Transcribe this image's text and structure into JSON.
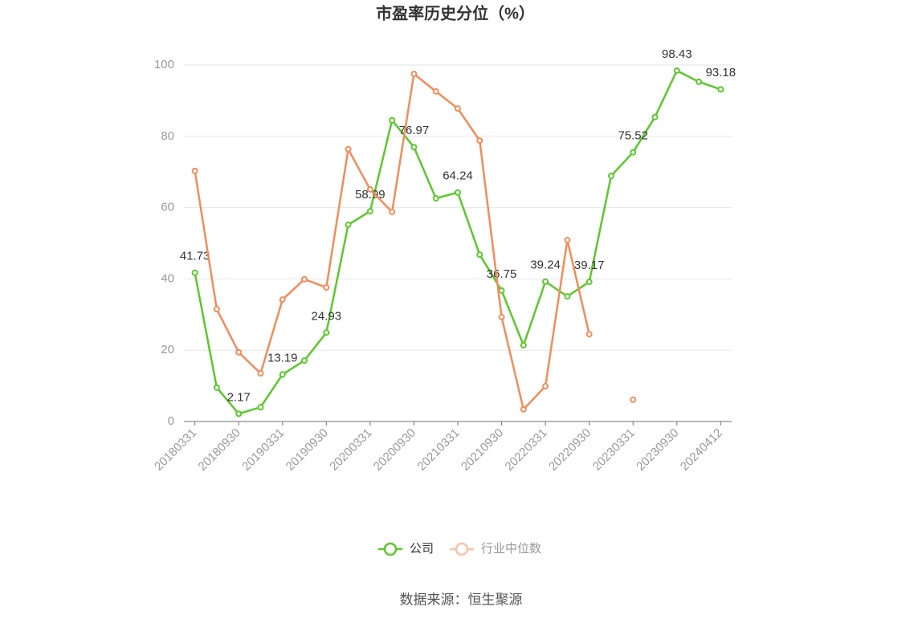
{
  "chart_data": {
    "type": "line",
    "title": "市盈率历史分位（%）",
    "categories": [
      "20180331",
      null,
      "20180930",
      null,
      "20190331",
      null,
      "20190930",
      null,
      "20200331",
      null,
      "20200930",
      null,
      "20210331",
      null,
      "20210930",
      null,
      "20220331",
      null,
      "20220930",
      null,
      "20230331",
      null,
      "20230930",
      null,
      "20240412"
    ],
    "series": [
      {
        "name": "公司",
        "color": "#5cc72c",
        "values": [
          41.73,
          9.5,
          2.17,
          4,
          13.19,
          17.1,
          24.93,
          55.2,
          58.99,
          84.5,
          76.97,
          62.6,
          64.24,
          46.8,
          36.75,
          21.4,
          39.24,
          35.1,
          39.17,
          68.9,
          75.52,
          85.4,
          98.43,
          95.3,
          93.18
        ],
        "value_labels": [
          "41.73",
          null,
          "2.17",
          null,
          "13.19",
          null,
          "24.93",
          null,
          "58.99",
          null,
          "76.97",
          null,
          "64.24",
          null,
          "36.75",
          null,
          "39.24",
          null,
          "39.17",
          null,
          "75.52",
          null,
          "98.43",
          null,
          "93.18"
        ]
      },
      {
        "name": "行业中位数",
        "color": "#f28c5b",
        "values": [
          70.3,
          31.5,
          19.4,
          13.5,
          34.2,
          39.9,
          37.6,
          76.4,
          65.1,
          58.8,
          97.5,
          92.6,
          87.8,
          78.8,
          29.3,
          3.4,
          9.9,
          50.9,
          24.5,
          null,
          6.1,
          null,
          null,
          null,
          null
        ]
      }
    ],
    "ylim": [
      0,
      100
    ],
    "yticks": [
      0,
      20,
      40,
      60,
      80,
      100
    ],
    "grid": true,
    "source": "数据来源：恒生聚源"
  }
}
